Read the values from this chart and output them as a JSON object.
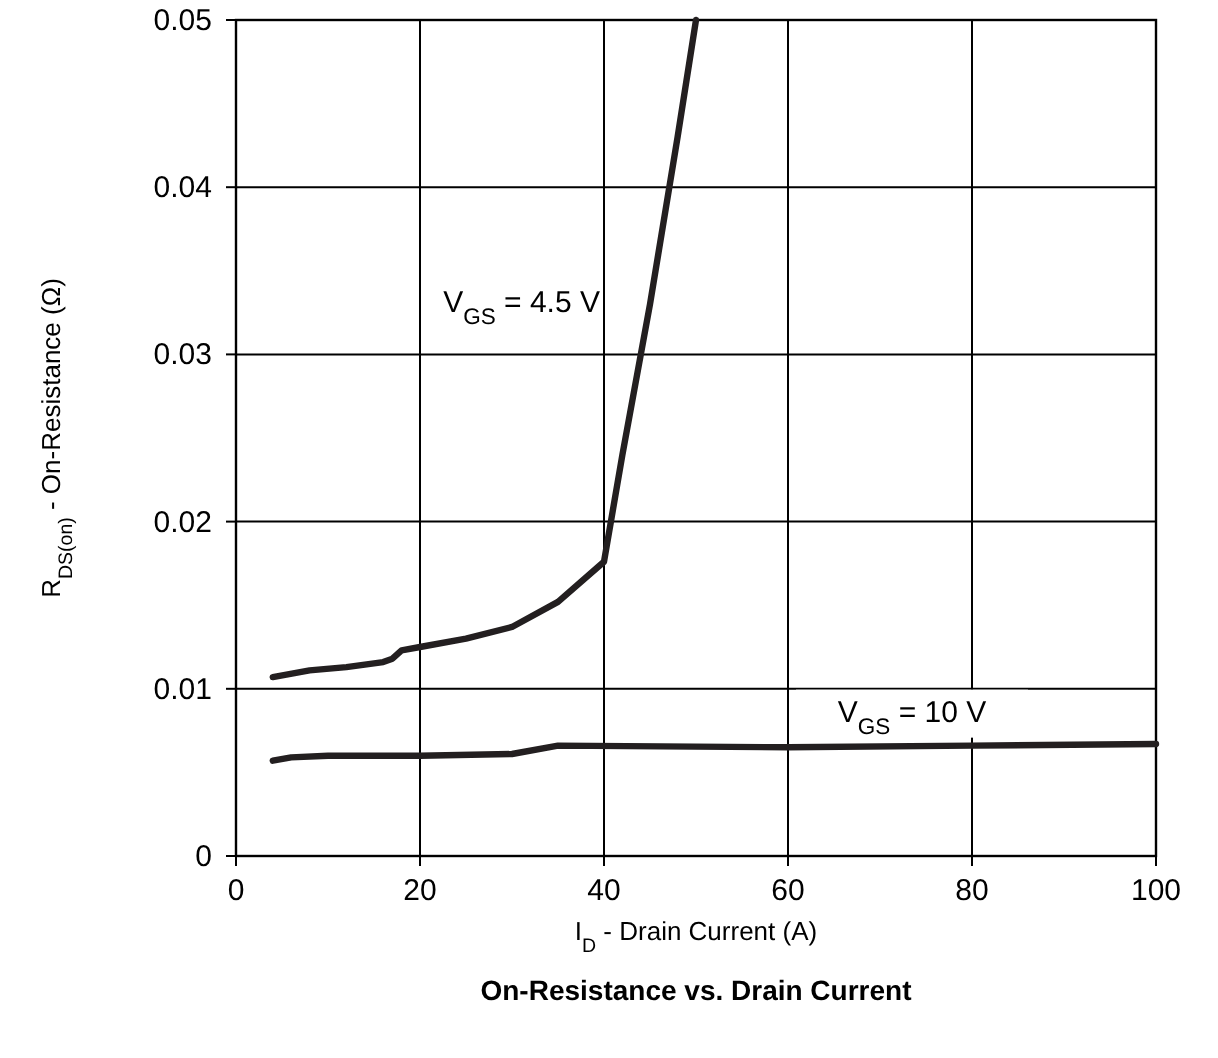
{
  "chart_data": {
    "type": "line",
    "title": "On-Resistance vs. Drain Current",
    "xlabel": "I$_{D}$ - Drain Current (A)",
    "ylabel": "R$_{DS(on)}$ - On-Resistance (Ω)",
    "xlim": [
      0,
      100
    ],
    "xticks": [
      0,
      20,
      40,
      60,
      80,
      100
    ],
    "ylim": [
      0,
      0.05
    ],
    "yticks": [
      0,
      0.01,
      0.02,
      0.03,
      0.04,
      0.05
    ],
    "grid": true,
    "line_style": "solid",
    "series": [
      {
        "name": "V$_{GS}$ = 4.5 V",
        "color": "#231f20",
        "x": [
          4,
          8,
          12,
          16,
          17,
          18,
          20,
          25,
          30,
          35,
          40,
          42,
          45,
          48,
          50
        ],
        "values": [
          0.0107,
          0.0111,
          0.0113,
          0.0116,
          0.0118,
          0.0123,
          0.0125,
          0.013,
          0.0137,
          0.0152,
          0.0176,
          0.024,
          0.033,
          0.043,
          0.05
        ]
      },
      {
        "name": "V$_{GS}$ = 10 V",
        "color": "#231f20",
        "x": [
          4,
          6,
          10,
          20,
          30,
          35,
          60,
          80,
          100
        ],
        "values": [
          0.0057,
          0.0059,
          0.006,
          0.006,
          0.0061,
          0.0066,
          0.0065,
          0.0066,
          0.0067
        ]
      }
    ]
  }
}
